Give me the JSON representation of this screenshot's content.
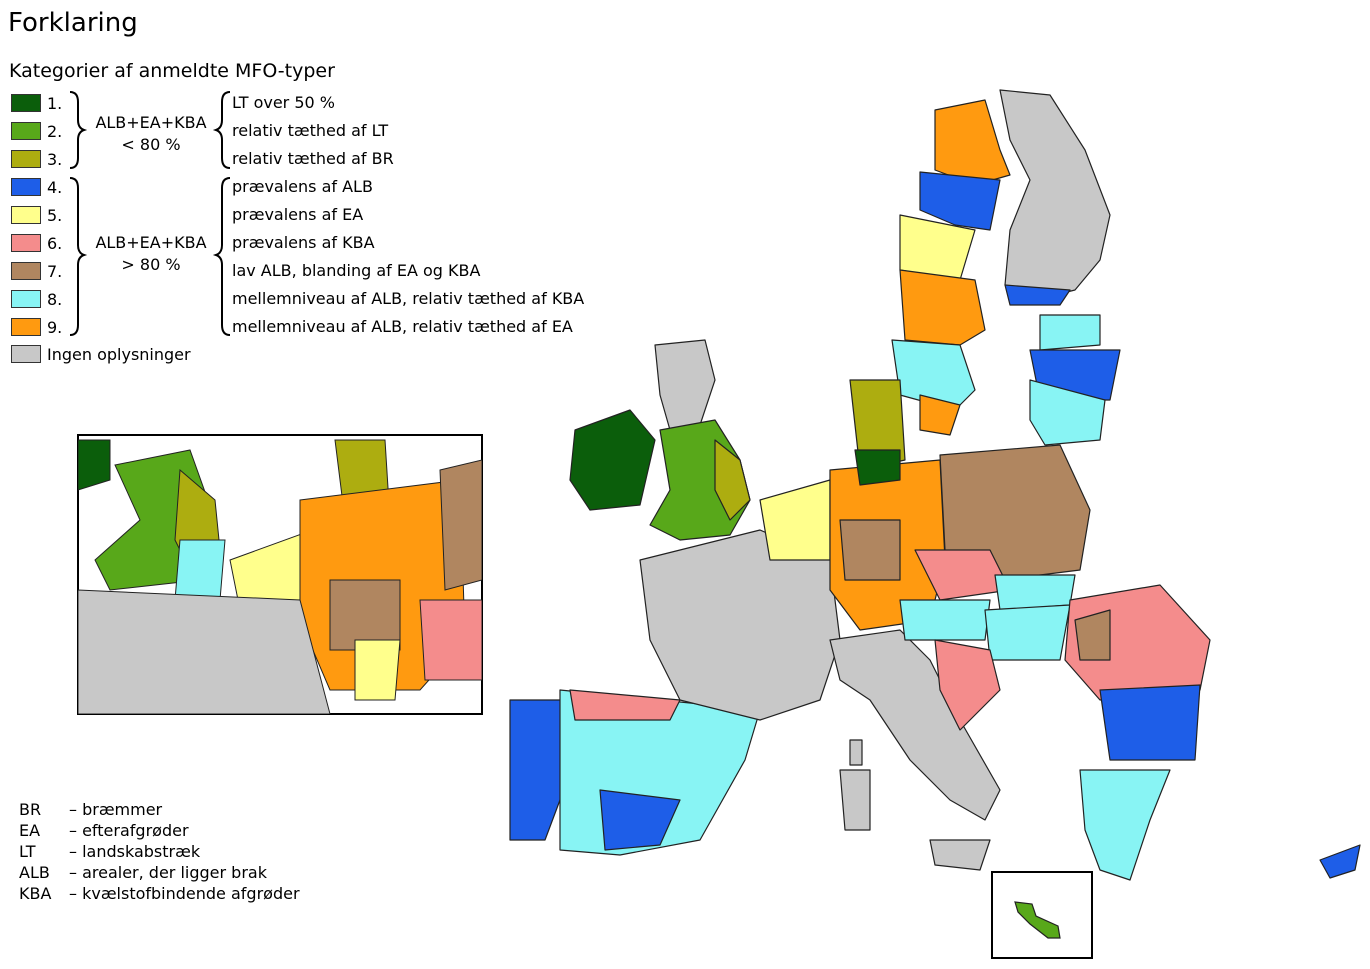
{
  "legend": {
    "title": "Forklaring",
    "subtitle": "Kategorier af anmeldte MFO-typer",
    "items": [
      {
        "num": "1.",
        "color": "#0b5e0b",
        "desc": "LT over 50 %"
      },
      {
        "num": "2.",
        "color": "#58a81a",
        "desc": "relativ tæthed af LT"
      },
      {
        "num": "3.",
        "color": "#adad10",
        "desc": "relativ tæthed af BR"
      },
      {
        "num": "4.",
        "color": "#1e5ee8",
        "desc": "prævalens af ALB"
      },
      {
        "num": "5.",
        "color": "#ffff8c",
        "desc": "prævalens af EA"
      },
      {
        "num": "6.",
        "color": "#f48c8c",
        "desc": "prævalens af KBA"
      },
      {
        "num": "7.",
        "color": "#b08660",
        "desc": "lav ALB, blanding af EA og KBA"
      },
      {
        "num": "8.",
        "color": "#88f4f4",
        "desc": "mellemniveau af ALB, relativ tæthed af KBA"
      },
      {
        "num": "9.",
        "color": "#ff9a10",
        "desc": "mellemniveau af ALB, relativ tæthed af EA"
      }
    ],
    "nodata": {
      "label": "Ingen oplysninger",
      "color": "#c8c8c8"
    },
    "group_low": {
      "line1": "ALB+EA+KBA",
      "line2": "< 80 %"
    },
    "group_high": {
      "line1": "ALB+EA+KBA",
      "line2": "> 80 %"
    }
  },
  "abbreviations": [
    {
      "abbr": "BR",
      "text": "– bræmmer"
    },
    {
      "abbr": "EA",
      "text": "– efterafgrøder"
    },
    {
      "abbr": "LT",
      "text": "– landskabstræk"
    },
    {
      "abbr": "ALB",
      "text": "– arealer, der ligger brak"
    },
    {
      "abbr": "KBA",
      "text": "– kvælstofbindende afgrøder"
    }
  ],
  "map_icons": {
    "main_map": "europe-choropleth-map",
    "inset": "inset-map-central-europe",
    "malta_inset": "malta-inset-map"
  }
}
